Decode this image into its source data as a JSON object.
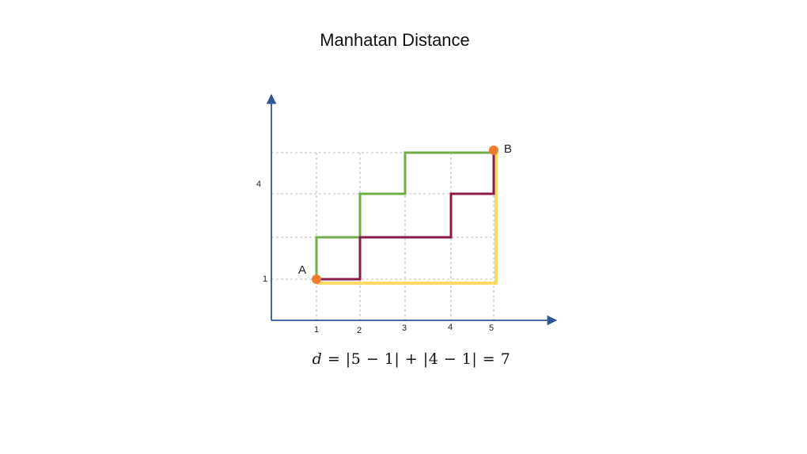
{
  "title": "Manhatan Distance",
  "formula": {
    "variable": "d",
    "rest": " = |5 − 1| + |4 − 1| = 7"
  },
  "axes": {
    "x_ticks": [
      "1",
      "2",
      "3",
      "4",
      "5"
    ],
    "y_ticks": [
      "1",
      "4"
    ]
  },
  "points": {
    "a": {
      "label": "A",
      "x": 1,
      "y": 1
    },
    "b": {
      "label": "B",
      "x": 5,
      "y": 4
    }
  },
  "paths": [
    {
      "id": "green",
      "color": "#70ad47",
      "points": [
        [
          1,
          1
        ],
        [
          1,
          2
        ],
        [
          2,
          2
        ],
        [
          2,
          3
        ],
        [
          3,
          3
        ],
        [
          3,
          4
        ],
        [
          5,
          4
        ]
      ]
    },
    {
      "id": "purple",
      "color": "#8b1a4a",
      "points": [
        [
          1,
          1
        ],
        [
          2,
          1
        ],
        [
          2,
          2
        ],
        [
          4,
          2
        ],
        [
          4,
          3
        ],
        [
          5,
          3
        ],
        [
          5,
          4
        ]
      ]
    },
    {
      "id": "yellow",
      "color": "#ffd966",
      "points": [
        [
          1,
          1
        ],
        [
          5,
          1
        ],
        [
          5,
          4
        ]
      ]
    }
  ],
  "colors": {
    "axis": "#2f5597",
    "grid": "#a6a6a6",
    "point": "#ed7d31"
  }
}
